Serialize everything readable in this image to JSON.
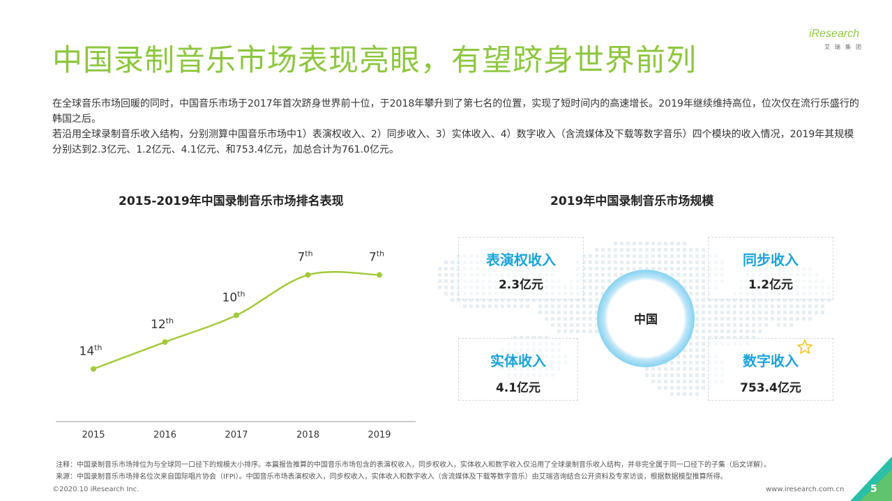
{
  "page": {
    "title": "中国录制音乐市场表现亮眼，有望跻身世界前列",
    "logo": {
      "brand": "iResearch",
      "sub": "艾瑞集团"
    },
    "intro": [
      "在全球音乐市场回暖的同时，中国音乐市场于2017年首次跻身世界前十位，于2018年攀升到了第七名的位置，实现了短时间内的高速增长。2019年继续维持高位，位次仅在流行乐盛行的韩国之后。",
      "若沿用全球录制音乐收入结构，分别测算中国音乐市场中1）表演权收入、2）同步收入、3）实体收入、4）数字收入（含流媒体及下载等数字音乐）四个模块的收入情况，2019年其规模分别达到2.3亿元、1.2亿元、4.1亿元、和753.4亿元，加总合计为761.0亿元。"
    ],
    "notes": [
      "注释：中国录制音乐市场排位为与全球同一口径下的规模大小排序。本篇报告推算的中国音乐市场包含的表演权收入，同步权收入，实体收入和数字收入仅沿用了全球录制音乐收入结构，并非完全属于同一口径下的子集（后文详解）。",
      "来源：中国录制音乐市场排名位次来自国际唱片协会（IFPI）。中国音乐市场表演权收入，同步权收入，实体收入和数字收入（含流媒体及下载等数字音乐）由艾瑞咨询结合公开资料及专家访谈，根据数据模型推算所得。"
    ],
    "footer": {
      "copyright": "©2020.10 iResearch Inc.",
      "url": "www.iresearch.com.cn",
      "page_number": "5"
    }
  },
  "colors": {
    "title_green": "#8dc63f",
    "line_green": "#a3c93a",
    "panel_blue": "#1aa3d9",
    "corner_teal": "#2bbfa7"
  },
  "chart_data": {
    "type": "line",
    "title": "2015-2019年中国录制音乐市场排名表现",
    "categories": [
      "2015",
      "2016",
      "2017",
      "2018",
      "2019"
    ],
    "rank_numbers": [
      "14",
      "12",
      "10",
      "7",
      "7"
    ],
    "rank_suffix": "th",
    "values": [
      14,
      12,
      10,
      7,
      7
    ],
    "y_inverted": true,
    "ylim": [
      5,
      16
    ],
    "grid": false
  },
  "market": {
    "title": "2019年中国录制音乐市场规模",
    "center": "中国",
    "panels": [
      {
        "label": "表演权收入",
        "value": "2.3亿元"
      },
      {
        "label": "同步收入",
        "value": "1.2亿元"
      },
      {
        "label": "实体收入",
        "value": "4.1亿元"
      },
      {
        "label": "数字收入",
        "value": "753.4亿元"
      }
    ],
    "star_icon": "star-outline-icon"
  }
}
